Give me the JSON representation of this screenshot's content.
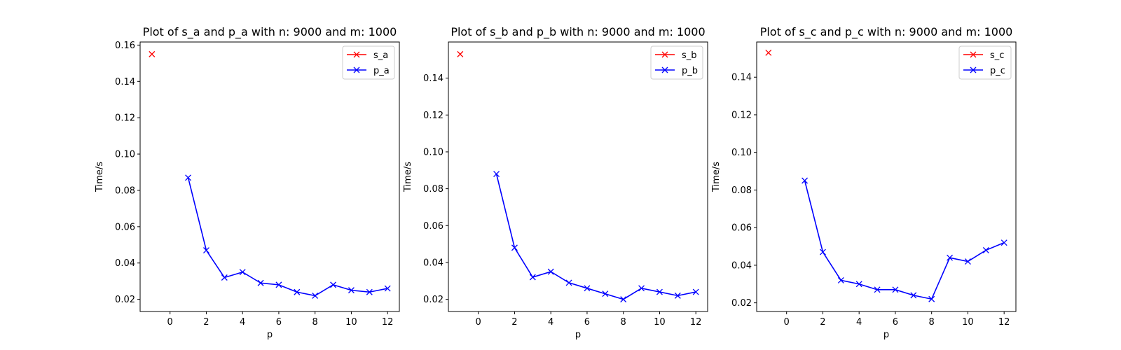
{
  "chart_data": [
    {
      "type": "line",
      "title": "Plot of s_a and p_a with n: 9000 and m: 1000",
      "xlabel": "p",
      "ylabel": "Time/s",
      "xlim": [
        -1.65,
        12.65
      ],
      "ylim": [
        0.0133,
        0.1617
      ],
      "xticks": [
        0,
        2,
        4,
        6,
        8,
        10,
        12
      ],
      "xtick_labels": [
        "0",
        "2",
        "4",
        "6",
        "8",
        "10",
        "12"
      ],
      "yticks": [
        0.02,
        0.04,
        0.06,
        0.08,
        0.1,
        0.12,
        0.14,
        0.16
      ],
      "ytick_labels": [
        "0.02",
        "0.04",
        "0.06",
        "0.08",
        "0.10",
        "0.12",
        "0.14",
        "0.16"
      ],
      "grid": false,
      "legend": "top-right",
      "series": [
        {
          "name": "s_a",
          "color": "#ff0000",
          "marker": "x",
          "line": false,
          "x": [
            -1
          ],
          "y": [
            0.155
          ]
        },
        {
          "name": "p_a",
          "color": "#0000ff",
          "marker": "x",
          "line": true,
          "x": [
            1,
            2,
            3,
            4,
            5,
            6,
            7,
            8,
            9,
            10,
            11,
            12
          ],
          "y": [
            0.087,
            0.047,
            0.032,
            0.035,
            0.029,
            0.028,
            0.024,
            0.022,
            0.028,
            0.025,
            0.024,
            0.026
          ]
        }
      ]
    },
    {
      "type": "line",
      "title": "Plot of s_b and p_b with n: 9000 and m: 1000",
      "xlabel": "p",
      "ylabel": "Time/s",
      "xlim": [
        -1.65,
        12.65
      ],
      "ylim": [
        0.0134,
        0.1596
      ],
      "xticks": [
        0,
        2,
        4,
        6,
        8,
        10,
        12
      ],
      "xtick_labels": [
        "0",
        "2",
        "4",
        "6",
        "8",
        "10",
        "12"
      ],
      "yticks": [
        0.02,
        0.04,
        0.06,
        0.08,
        0.1,
        0.12,
        0.14
      ],
      "ytick_labels": [
        "0.02",
        "0.04",
        "0.06",
        "0.08",
        "0.10",
        "0.12",
        "0.14"
      ],
      "grid": false,
      "legend": "top-right",
      "series": [
        {
          "name": "s_b",
          "color": "#ff0000",
          "marker": "x",
          "line": false,
          "x": [
            -1
          ],
          "y": [
            0.153
          ]
        },
        {
          "name": "p_b",
          "color": "#0000ff",
          "marker": "x",
          "line": true,
          "x": [
            1,
            2,
            3,
            4,
            5,
            6,
            7,
            8,
            9,
            10,
            11,
            12
          ],
          "y": [
            0.088,
            0.048,
            0.032,
            0.035,
            0.029,
            0.026,
            0.023,
            0.02,
            0.026,
            0.024,
            0.022,
            0.024
          ]
        }
      ]
    },
    {
      "type": "line",
      "title": "Plot of s_c and p_c with n: 9000 and m: 1000",
      "xlabel": "p",
      "ylabel": "Time/s",
      "xlim": [
        -1.65,
        12.65
      ],
      "ylim": [
        0.0154,
        0.1587
      ],
      "xticks": [
        0,
        2,
        4,
        6,
        8,
        10,
        12
      ],
      "xtick_labels": [
        "0",
        "2",
        "4",
        "6",
        "8",
        "10",
        "12"
      ],
      "yticks": [
        0.02,
        0.04,
        0.06,
        0.08,
        0.1,
        0.12,
        0.14
      ],
      "ytick_labels": [
        "0.02",
        "0.04",
        "0.06",
        "0.08",
        "0.10",
        "0.12",
        "0.14"
      ],
      "grid": false,
      "legend": "top-right",
      "series": [
        {
          "name": "s_c",
          "color": "#ff0000",
          "marker": "x",
          "line": false,
          "x": [
            -1
          ],
          "y": [
            0.153
          ]
        },
        {
          "name": "p_c",
          "color": "#0000ff",
          "marker": "x",
          "line": true,
          "x": [
            1,
            2,
            3,
            4,
            5,
            6,
            7,
            8,
            9,
            10,
            11,
            12
          ],
          "y": [
            0.085,
            0.047,
            0.032,
            0.03,
            0.027,
            0.027,
            0.024,
            0.022,
            0.044,
            0.042,
            0.048,
            0.052
          ]
        }
      ]
    }
  ]
}
